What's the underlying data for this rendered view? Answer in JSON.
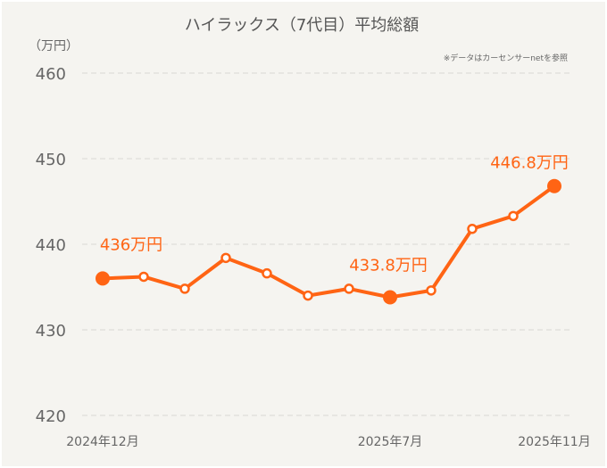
{
  "colors": {
    "background": "#f5f4f0",
    "line": "#ff6414",
    "grid": "#d9d8d3",
    "text": "#666666",
    "title": "#555555"
  },
  "chart_data": {
    "type": "line",
    "title": "ハイラックス（7代目）平均総額",
    "ylabel": "（万円）",
    "note": "※データはカーセンサーnetを参照",
    "ylim": [
      420,
      460
    ],
    "yticks": [
      "460",
      "450",
      "440",
      "430",
      "420"
    ],
    "ytick_values": [
      460,
      450,
      440,
      430,
      420
    ],
    "grid": true,
    "x": [
      "2024-12",
      "2025-01",
      "2025-02",
      "2025-03",
      "2025-04",
      "2025-05",
      "2025-06",
      "2025-07",
      "2025-08",
      "2025-09",
      "2025-10",
      "2025-11"
    ],
    "xtick_labels": [
      {
        "index": 0,
        "label": "2024年12月"
      },
      {
        "index": 7,
        "label": "2025年7月"
      },
      {
        "index": 11,
        "label": "2025年11月"
      }
    ],
    "series": [
      {
        "name": "平均総額",
        "values": [
          436.0,
          436.2,
          434.8,
          438.4,
          436.6,
          434.0,
          434.8,
          433.8,
          434.6,
          441.8,
          443.3,
          446.8
        ]
      }
    ],
    "highlights": [
      {
        "index": 0,
        "label": "436万円"
      },
      {
        "index": 7,
        "label": "433.8万円"
      },
      {
        "index": 11,
        "label": "446.8万円"
      }
    ]
  }
}
